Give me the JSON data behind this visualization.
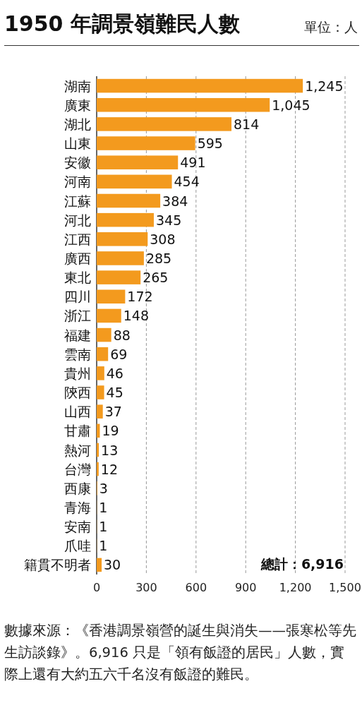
{
  "chart_data": {
    "type": "bar",
    "orientation": "horizontal",
    "title": "1950 年調景嶺難民人數",
    "subtitle": "單位：人",
    "categories": [
      "湖南",
      "廣東",
      "湖北",
      "山東",
      "安徽",
      "河南",
      "江蘇",
      "河北",
      "江西",
      "廣西",
      "東北",
      "四川",
      "浙江",
      "福建",
      "雲南",
      "貴州",
      "陝西",
      "山西",
      "甘肅",
      "熱河",
      "台灣",
      "西康",
      "青海",
      "安南",
      "爪哇",
      "籍貫不明者"
    ],
    "values": [
      1245,
      1045,
      814,
      595,
      491,
      454,
      384,
      345,
      308,
      285,
      265,
      172,
      148,
      88,
      69,
      46,
      45,
      37,
      19,
      13,
      12,
      3,
      1,
      1,
      1,
      30
    ],
    "color": "#f39a1e",
    "xlim": [
      0,
      1500
    ],
    "xticks": [
      0,
      300,
      600,
      900,
      {
        "value": 1200,
        "label": "1,200"
      },
      {
        "value": 1500,
        "label": "1,500"
      }
    ],
    "grid": "x",
    "value_labels": [
      "1,245",
      "1,045",
      "814",
      "595",
      "491",
      "454",
      "384",
      "345",
      "308",
      "285",
      "265",
      "172",
      "148",
      "88",
      "69",
      "46",
      "45",
      "37",
      "19",
      "13",
      "12",
      "3",
      "1",
      "1",
      "1",
      "30"
    ],
    "annotations": [
      "總計：6,916",
      "數據來源：《香港調景嶺營的誕生與消失——張寒松等先生訪談錄》。6,916 只是「領有飯證的居民」人數，實際上還有大約五六千名沒有飯證的難民。"
    ]
  }
}
